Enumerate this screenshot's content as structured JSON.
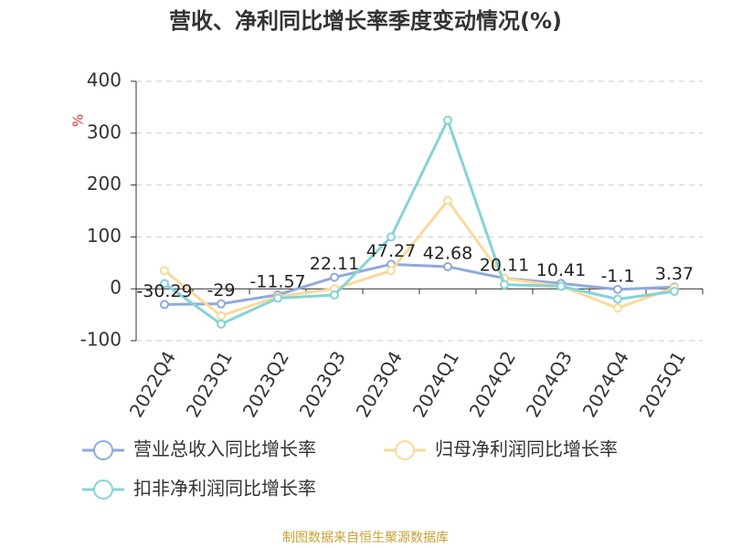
{
  "chart_data": {
    "type": "line",
    "title": "营收、净利同比增长率季度变动情况(%)",
    "y_label": "%",
    "source": "制图数据来自恒生聚源数据库",
    "categories": [
      "2022Q4",
      "2023Q1",
      "2023Q2",
      "2023Q3",
      "2023Q4",
      "2024Q1",
      "2024Q2",
      "2024Q3",
      "2024Q4",
      "2025Q1"
    ],
    "series": [
      {
        "name": "营业总收入同比增长率",
        "color": "#8fa9dc",
        "values": [
          -30.29,
          -29,
          -11.57,
          22.11,
          47.27,
          42.68,
          20.11,
          10.41,
          -1.1,
          3.37
        ],
        "labels": true
      },
      {
        "name": "归母净利润同比增长率",
        "color": "#fad99a",
        "values": [
          35,
          -52,
          -15,
          0,
          35,
          170,
          20,
          5,
          -37,
          2
        ]
      },
      {
        "name": "扣非净利润同比增长率",
        "color": "#86d3d6",
        "values": [
          10,
          -68,
          -18,
          -12,
          100,
          325,
          8,
          5,
          -20,
          -5
        ]
      }
    ],
    "ylim": [
      -100,
      400
    ],
    "yticks": [
      -100,
      0,
      100,
      200,
      300,
      400
    ],
    "grid": true
  }
}
